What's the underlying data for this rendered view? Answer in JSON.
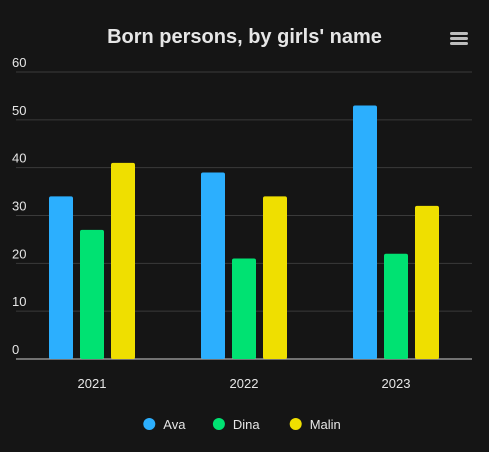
{
  "chart_data": {
    "type": "bar",
    "title": "Born persons, by girls' name",
    "categories": [
      "2021",
      "2022",
      "2023"
    ],
    "series": [
      {
        "name": "Ava",
        "values": [
          34,
          39,
          53
        ],
        "color": "#2caffe"
      },
      {
        "name": "Dina",
        "values": [
          27,
          21,
          22
        ],
        "color": "#00e272"
      },
      {
        "name": "Malin",
        "values": [
          41,
          34,
          32
        ],
        "color": "#efdf00"
      }
    ],
    "ylim": [
      0,
      60
    ],
    "yticks": [
      0,
      10,
      20,
      30,
      40,
      50,
      60
    ],
    "xlabel": "",
    "ylabel": "",
    "grid": true,
    "legend": "bottom-center"
  },
  "ui": {
    "menu_icon": "hamburger-menu-icon",
    "background_color": "#151515"
  }
}
